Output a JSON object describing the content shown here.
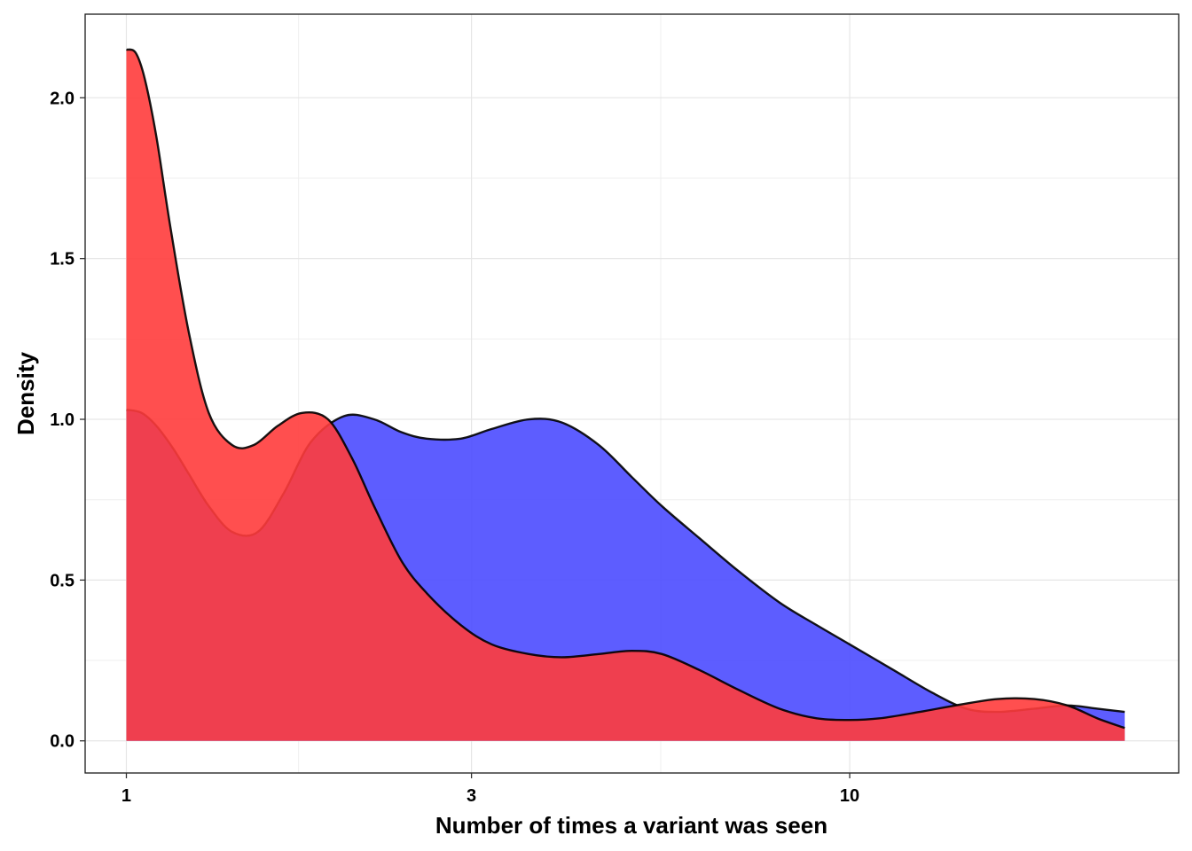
{
  "chart_data": {
    "type": "area",
    "xlabel": "Number of times a variant was seen",
    "ylabel": "Density",
    "x_scale": "log10",
    "x_ticks": [
      {
        "value": 1,
        "label": "1"
      },
      {
        "value": 3,
        "label": "3"
      },
      {
        "value": 10,
        "label": "10"
      }
    ],
    "x_minor_ticks": [
      1.73,
      5.48
    ],
    "xlim": [
      0.877,
      28.5
    ],
    "y_ticks": [
      {
        "value": 0.0,
        "label": "0.0"
      },
      {
        "value": 0.5,
        "label": "0.5"
      },
      {
        "value": 1.0,
        "label": "1.0"
      },
      {
        "value": 1.5,
        "label": "1.5"
      },
      {
        "value": 2.0,
        "label": "2.0"
      }
    ],
    "y_minor_ticks": [
      0.25,
      0.75,
      1.25,
      1.75
    ],
    "ylim": [
      -0.1,
      2.26
    ],
    "grid": true,
    "legend": "none",
    "series": [
      {
        "fill": "#4b4bff",
        "stroke": "#000000",
        "x": [
          1.0,
          1.05,
          1.1,
          1.16,
          1.22,
          1.3,
          1.4,
          1.52,
          1.65,
          1.8,
          2.0,
          2.2,
          2.4,
          2.6,
          2.9,
          3.2,
          3.6,
          4.0,
          4.5,
          5.0,
          5.5,
          6.2,
          7.0,
          8.0,
          9.0,
          10.0,
          11.5,
          13.0,
          14.5,
          16.0,
          18.0,
          20.0,
          22.0,
          24.0
        ],
        "y": [
          1.03,
          1.02,
          0.98,
          0.91,
          0.83,
          0.73,
          0.65,
          0.65,
          0.77,
          0.93,
          1.01,
          1.0,
          0.96,
          0.94,
          0.94,
          0.97,
          1.0,
          0.99,
          0.92,
          0.82,
          0.73,
          0.63,
          0.53,
          0.43,
          0.36,
          0.3,
          0.22,
          0.15,
          0.1,
          0.09,
          0.1,
          0.11,
          0.1,
          0.09
        ]
      },
      {
        "fill": "#ff3c3c",
        "stroke": "#000000",
        "x": [
          1.0,
          1.03,
          1.06,
          1.1,
          1.15,
          1.22,
          1.3,
          1.4,
          1.5,
          1.62,
          1.75,
          1.9,
          2.05,
          2.2,
          2.4,
          2.6,
          2.9,
          3.2,
          3.6,
          4.0,
          4.5,
          5.0,
          5.5,
          6.2,
          7.0,
          8.0,
          9.0,
          10.0,
          11.0,
          12.5,
          14.0,
          16.0,
          18.0,
          20.0,
          22.0,
          24.0
        ],
        "y": [
          2.15,
          2.14,
          2.06,
          1.88,
          1.6,
          1.27,
          1.02,
          0.92,
          0.92,
          0.98,
          1.02,
          1.0,
          0.88,
          0.73,
          0.56,
          0.46,
          0.36,
          0.3,
          0.27,
          0.26,
          0.27,
          0.28,
          0.27,
          0.22,
          0.16,
          0.1,
          0.07,
          0.065,
          0.07,
          0.09,
          0.11,
          0.13,
          0.13,
          0.11,
          0.07,
          0.04
        ]
      }
    ]
  }
}
